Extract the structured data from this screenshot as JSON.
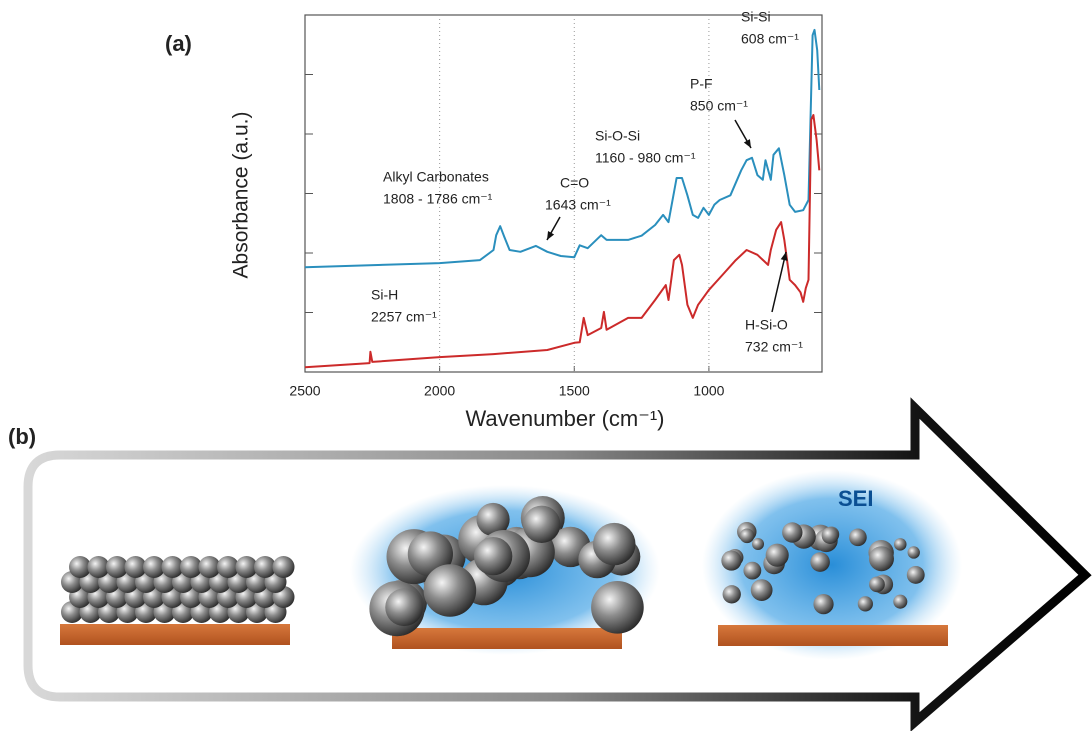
{
  "figure_labels": [
    "(a)",
    "(b)"
  ],
  "chart_data": {
    "type": "line",
    "x_label": "Wavenumber (cm⁻¹)",
    "y_label": "Absorbance (a.u.)",
    "xlim": [
      2500,
      580
    ],
    "xticks": [
      2500,
      2000,
      1500,
      1000
    ],
    "ylim": [
      0,
      6
    ],
    "yticks": [
      1,
      2,
      3,
      4,
      5
    ],
    "grid": true,
    "series": [
      {
        "color": "#2a8fbd",
        "x": [
          2500,
          2000,
          1850,
          1800,
          1790,
          1775,
          1760,
          1740,
          1700,
          1643,
          1600,
          1550,
          1500,
          1480,
          1450,
          1400,
          1380,
          1300,
          1250,
          1200,
          1170,
          1150,
          1120,
          1100,
          1080,
          1060,
          1040,
          1020,
          1000,
          980,
          960,
          920,
          880,
          860,
          840,
          820,
          800,
          790,
          770,
          760,
          740,
          720,
          700,
          680,
          650,
          630,
          615,
          608,
          598,
          590
        ],
        "values": [
          1.76,
          1.83,
          1.88,
          2.05,
          2.3,
          2.45,
          2.27,
          2.05,
          2.02,
          2.12,
          2.02,
          1.95,
          1.93,
          2.13,
          2.08,
          2.3,
          2.22,
          2.22,
          2.29,
          2.47,
          2.64,
          2.52,
          3.26,
          3.26,
          2.97,
          2.64,
          2.59,
          2.76,
          2.64,
          2.81,
          2.89,
          2.97,
          3.39,
          3.56,
          3.6,
          3.31,
          3.23,
          3.56,
          3.23,
          3.65,
          3.76,
          3.31,
          2.81,
          2.69,
          2.72,
          2.89,
          5.66,
          5.75,
          5.41,
          4.74
        ]
      },
      {
        "color": "#cc2a2a",
        "x": [
          2500,
          2260,
          2257,
          2250,
          2000,
          1800,
          1600,
          1500,
          1480,
          1465,
          1450,
          1400,
          1390,
          1380,
          1300,
          1250,
          1200,
          1160,
          1150,
          1130,
          1110,
          1100,
          1080,
          1060,
          1040,
          1000,
          950,
          900,
          860,
          820,
          780,
          770,
          750,
          732,
          720,
          700,
          680,
          660,
          650,
          640,
          630,
          620,
          612,
          600,
          590
        ],
        "values": [
          0.08,
          0.15,
          0.34,
          0.17,
          0.25,
          0.3,
          0.37,
          0.49,
          0.5,
          0.91,
          0.62,
          0.74,
          1.01,
          0.71,
          0.91,
          0.91,
          1.21,
          1.46,
          1.21,
          1.88,
          1.97,
          1.8,
          1.13,
          0.91,
          1.13,
          1.38,
          1.63,
          1.88,
          2.05,
          1.97,
          1.8,
          2.05,
          2.39,
          2.52,
          2.22,
          1.55,
          1.46,
          1.34,
          1.18,
          1.41,
          1.55,
          4.24,
          4.32,
          3.9,
          3.39
        ]
      }
    ],
    "annotations": [
      [
        "Alkyl Carbonates",
        "1808 - 1786 cm⁻¹"
      ],
      [
        "C=O",
        "1643 cm⁻¹"
      ],
      [
        "Si-O-Si",
        "1160 - 980 cm⁻¹"
      ],
      [
        "P-F",
        "850 cm⁻¹"
      ],
      [
        "Si-Si",
        "608 cm⁻¹"
      ],
      [
        "Si-H",
        "2257 cm⁻¹"
      ],
      [
        "H-Si-O",
        "732 cm⁻¹"
      ]
    ]
  },
  "diagram": {
    "label": "SEI"
  }
}
